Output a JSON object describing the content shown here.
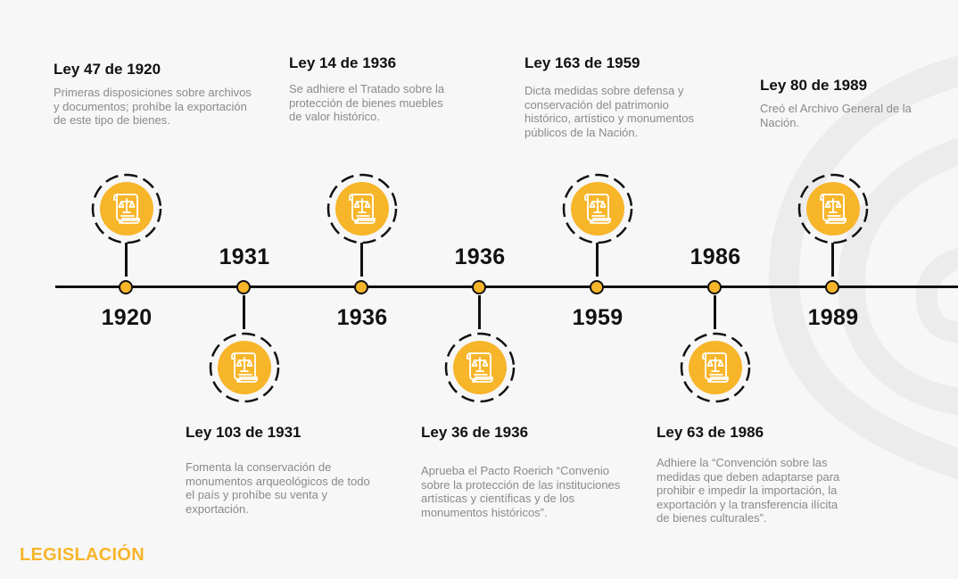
{
  "footer_label": "LEGISLACIÓN",
  "badge_icon": "law-scroll-icon",
  "accent_color": "#f7b52a",
  "events": [
    {
      "year": "1920",
      "title": "Ley 47 de 1920",
      "description": "Primeras disposiciones sobre archivos y documentos; prohíbe la exportación de este tipo de bienes."
    },
    {
      "year": "1931",
      "title": "Ley 103 de 1931",
      "description": "Fomenta la conservación de monumentos arqueológicos de todo el país y prohíbe su venta y exportación."
    },
    {
      "year": "1936",
      "title": "Ley 14 de 1936",
      "description": "Se adhiere el Tratado sobre la protección de bienes muebles de valor histórico."
    },
    {
      "year": "1936",
      "title": "Ley 36 de 1936",
      "description": "Aprueba el Pacto Roerich “Convenio sobre la protección de las instituciones artísticas y científicas y de los monumentos históricos”."
    },
    {
      "year": "1959",
      "title": "Ley 163 de 1959",
      "description": "Dicta medidas sobre defensa y conservación del patrimonio histórico, artístico y monumentos públicos de la Nación."
    },
    {
      "year": "1986",
      "title": "Ley 63 de 1986",
      "description": "Adhiere la “Convención sobre las medidas que deben adaptarse para prohibir e impedir la importación, la exportación y la transferencia ilícita de bienes culturales”."
    },
    {
      "year": "1989",
      "title": "Ley 80 de 1989",
      "description": "Creó el Archivo General de la Nación."
    }
  ]
}
